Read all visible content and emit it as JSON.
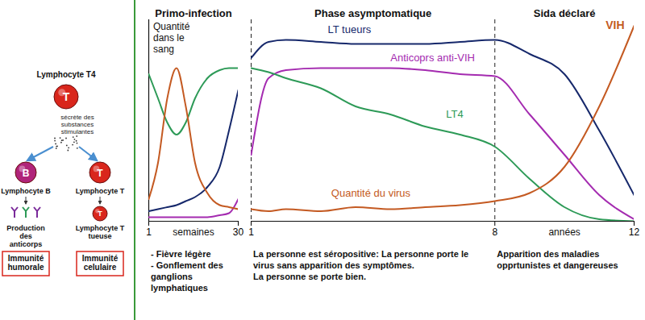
{
  "diagram": {
    "top_cell": {
      "letter": "T",
      "label": "Lymphocyte T4",
      "color": "#d9261c",
      "note": "sécrète des substances stimulantes"
    },
    "branches": [
      {
        "cell": {
          "letter": "B",
          "label": "Lymphocyte B",
          "color": "#b0247a"
        },
        "product": "Production des anticorps",
        "immunity": "Immunité humorale"
      },
      {
        "cell": {
          "letter": "T",
          "label": "Lymphocyte T",
          "color": "#d9261c"
        },
        "product_cell": {
          "letter": "T",
          "color": "#d9261c"
        },
        "product": "Lymphocyte T tueuse",
        "immunity": "Immunité celulaire"
      }
    ]
  },
  "chart_data": [
    {
      "type": "line",
      "ylabel": "Quantité dans le sang",
      "xlabel": "semaines",
      "x": [
        1,
        4,
        7,
        10,
        13,
        16,
        20,
        24,
        27,
        30
      ],
      "xlim": [
        1,
        30
      ],
      "xticks": [
        1,
        30
      ],
      "ylim": [
        0,
        100
      ],
      "tick_labels": "x",
      "phases": [
        {
          "title": "Primo-infection",
          "start": 1,
          "notes": [
            "- Fièvre légère",
            "- Gonflement des ganglions lymphatiques"
          ]
        }
      ],
      "series": [
        {
          "color": "#16286b",
          "values": [
            5,
            6,
            7,
            8,
            10,
            12,
            17,
            27,
            45,
            65
          ]
        },
        {
          "color": "#a42bb0",
          "values": [
            2,
            2,
            2,
            2,
            2,
            2,
            2,
            3,
            4,
            11
          ]
        },
        {
          "color": "#2d9a57",
          "values": [
            73,
            61,
            49,
            43,
            49,
            61,
            71,
            75,
            76,
            76
          ]
        },
        {
          "color": "#c45a22",
          "values": [
            11,
            29,
            61,
            76,
            57,
            29,
            14,
            8,
            7,
            6
          ]
        }
      ]
    },
    {
      "type": "line",
      "xlabel": "années",
      "x": [
        1,
        1.5,
        2,
        3,
        4,
        5,
        6,
        7,
        8,
        9,
        10,
        11,
        12
      ],
      "xlim": [
        1,
        12
      ],
      "xticks": [
        1,
        8,
        12
      ],
      "ylim": [
        0,
        100
      ],
      "tick_labels": "x",
      "phases": [
        {
          "title": "Phase asymptomatique",
          "start": 1,
          "notes": [
            "La personne est séropositive: La personne porte le virus sans apparition des symptômes.",
            "La personne se porte bien."
          ]
        },
        {
          "title": "Sida déclaré",
          "start": 8,
          "notes": [
            "Apparition des maladies opprtunistes et dangereuses"
          ]
        }
      ],
      "annotations": [
        "VIH"
      ],
      "series": [
        {
          "name": "LT tueurs",
          "color": "#16286b",
          "values": [
            81,
            89,
            90,
            89,
            88,
            88,
            88,
            89,
            90,
            83,
            73,
            45,
            13
          ]
        },
        {
          "name": "Anticoprs anti-VIH",
          "color": "#a42bb0",
          "values": [
            33,
            71,
            75,
            76,
            76,
            76,
            75,
            73,
            72,
            53,
            33,
            13,
            1
          ]
        },
        {
          "name": "LT4",
          "color": "#2d9a57",
          "values": [
            76,
            74,
            71,
            66,
            57,
            53,
            47,
            43,
            37,
            21,
            7,
            1,
            0
          ]
        },
        {
          "name": "Quantité du virus",
          "color": "#c45a22",
          "values": [
            6,
            5,
            6,
            5,
            7,
            6,
            7,
            8,
            10,
            14,
            27,
            57,
            97
          ]
        }
      ]
    }
  ]
}
